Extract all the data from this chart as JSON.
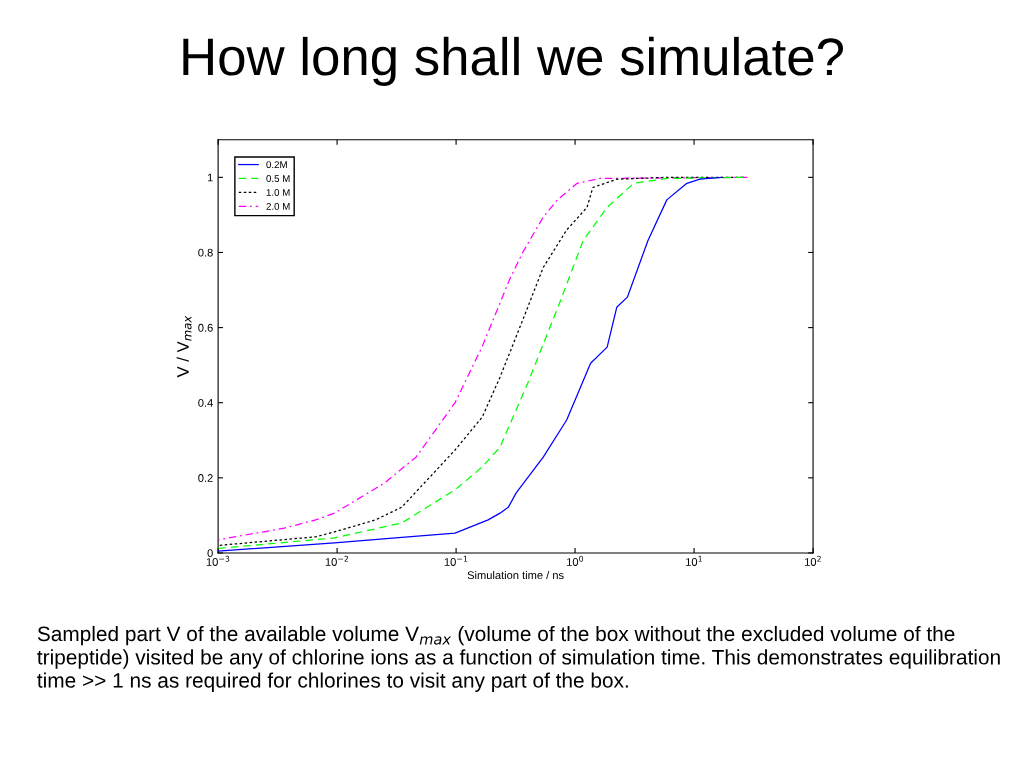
{
  "chart_data": {
    "type": "line",
    "title": "How long shall we simulate?",
    "xlabel": "Simulation time / ns",
    "ylabel": "V / V$_{max}$",
    "annotations": [
      "Sampled part V of the available volume V$_{max}$ (volume of the box without the excluded volume of the tripeptide) visited be any of chlorine ions as a function of simulation time. This demonstrates equilibration time >> 1 ns as required for chlorines to visit any part of the box."
    ],
    "log": "x",
    "xlim": [
      0.001,
      100
    ],
    "ylim": [
      0,
      1.1
    ],
    "xticks": [
      {
        "value": 0.001,
        "label": "10$^{−3}$"
      },
      {
        "value": 0.01,
        "label": "10$^{−2}$"
      },
      {
        "value": 0.1,
        "label": "10$^{−1}$"
      },
      {
        "value": 1,
        "label": "10$^{0}$"
      },
      {
        "value": 10,
        "label": "10$^{1}$"
      },
      {
        "value": 100,
        "label": "10$^{2}$"
      }
    ],
    "yticks": [
      0,
      0.2,
      0.4,
      0.6,
      0.8,
      1
    ],
    "grid": false,
    "legend": "top left",
    "marker": "none",
    "series": [
      {
        "name": "0.2M",
        "color": "#0000ff",
        "line_style": "solid",
        "x": [
          0.001,
          0.0095,
          0.031,
          0.098,
          0.186,
          0.234,
          0.275,
          0.32,
          0.54,
          0.85,
          1.35,
          1.86,
          2.24,
          2.75,
          4.1,
          5.9,
          8.7,
          11.2,
          17
        ],
        "values": [
          0.005,
          0.027,
          0.04,
          0.053,
          0.088,
          0.106,
          0.122,
          0.16,
          0.255,
          0.354,
          0.505,
          0.548,
          0.654,
          0.681,
          0.832,
          0.94,
          0.984,
          0.995,
          1.0
        ]
      },
      {
        "name": "0.5 M",
        "color": "#00ff00",
        "line_style": "dashed",
        "x": [
          0.001,
          0.0095,
          0.035,
          0.098,
          0.166,
          0.234,
          0.4,
          0.74,
          1.17,
          1.86,
          3.1,
          5.9,
          26
        ],
        "values": [
          0.012,
          0.04,
          0.08,
          0.168,
          0.229,
          0.282,
          0.452,
          0.665,
          0.832,
          0.92,
          0.984,
          0.997,
          1.0
        ]
      },
      {
        "name": "1.0 M",
        "color": "#000000",
        "line_style": "dotted",
        "x": [
          0.001,
          0.0066,
          0.0095,
          0.021,
          0.035,
          0.098,
          0.166,
          0.234,
          0.363,
          0.54,
          0.85,
          1.26,
          1.41,
          2.24,
          5.9,
          26
        ],
        "values": [
          0.02,
          0.043,
          0.056,
          0.088,
          0.122,
          0.274,
          0.362,
          0.468,
          0.62,
          0.76,
          0.86,
          0.92,
          0.973,
          0.995,
          1.0,
          1.0
        ]
      },
      {
        "name": "2.0 M",
        "color": "#ff00ff",
        "line_style": "dashdot",
        "x": [
          0.001,
          0.0036,
          0.0066,
          0.0095,
          0.025,
          0.046,
          0.098,
          0.166,
          0.28,
          0.363,
          0.54,
          0.71,
          1.04,
          1.62,
          28
        ],
        "values": [
          0.035,
          0.066,
          0.088,
          0.106,
          0.186,
          0.255,
          0.4,
          0.55,
          0.726,
          0.8,
          0.894,
          0.94,
          0.984,
          0.997,
          1.0
        ]
      }
    ]
  }
}
